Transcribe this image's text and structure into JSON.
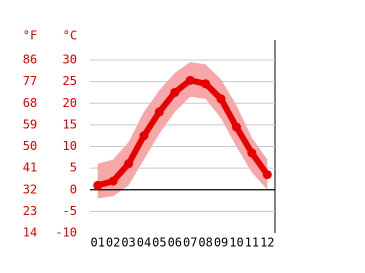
{
  "chart_data": {
    "type": "line",
    "y2_unit": "°F",
    "y_unit": "°C",
    "categories": [
      "01",
      "02",
      "03",
      "04",
      "05",
      "06",
      "07",
      "08",
      "09",
      "10",
      "11",
      "12"
    ],
    "values": [
      1,
      2,
      6,
      12.5,
      18,
      22.5,
      25.3,
      24.5,
      21,
      14.5,
      8.5,
      3.5
    ],
    "band_high": [
      6,
      7,
      11,
      18,
      23,
      27,
      29.5,
      29,
      25.5,
      19.5,
      12,
      7
    ],
    "band_low": [
      -2,
      -1.5,
      1,
      7,
      13,
      18,
      21.5,
      21,
      16.5,
      10,
      4,
      0
    ],
    "color": "#e60000",
    "band_color": "#f7a7a7",
    "tick_color": "#e60000",
    "ylim": [
      -10,
      30
    ],
    "yticks": [
      30,
      25,
      20,
      15,
      10,
      5,
      0,
      -5,
      -10
    ],
    "y2lim": [
      14,
      86
    ],
    "y2ticks": [
      86,
      77,
      68,
      59,
      50,
      41,
      32,
      23,
      14
    ],
    "grid": true
  }
}
